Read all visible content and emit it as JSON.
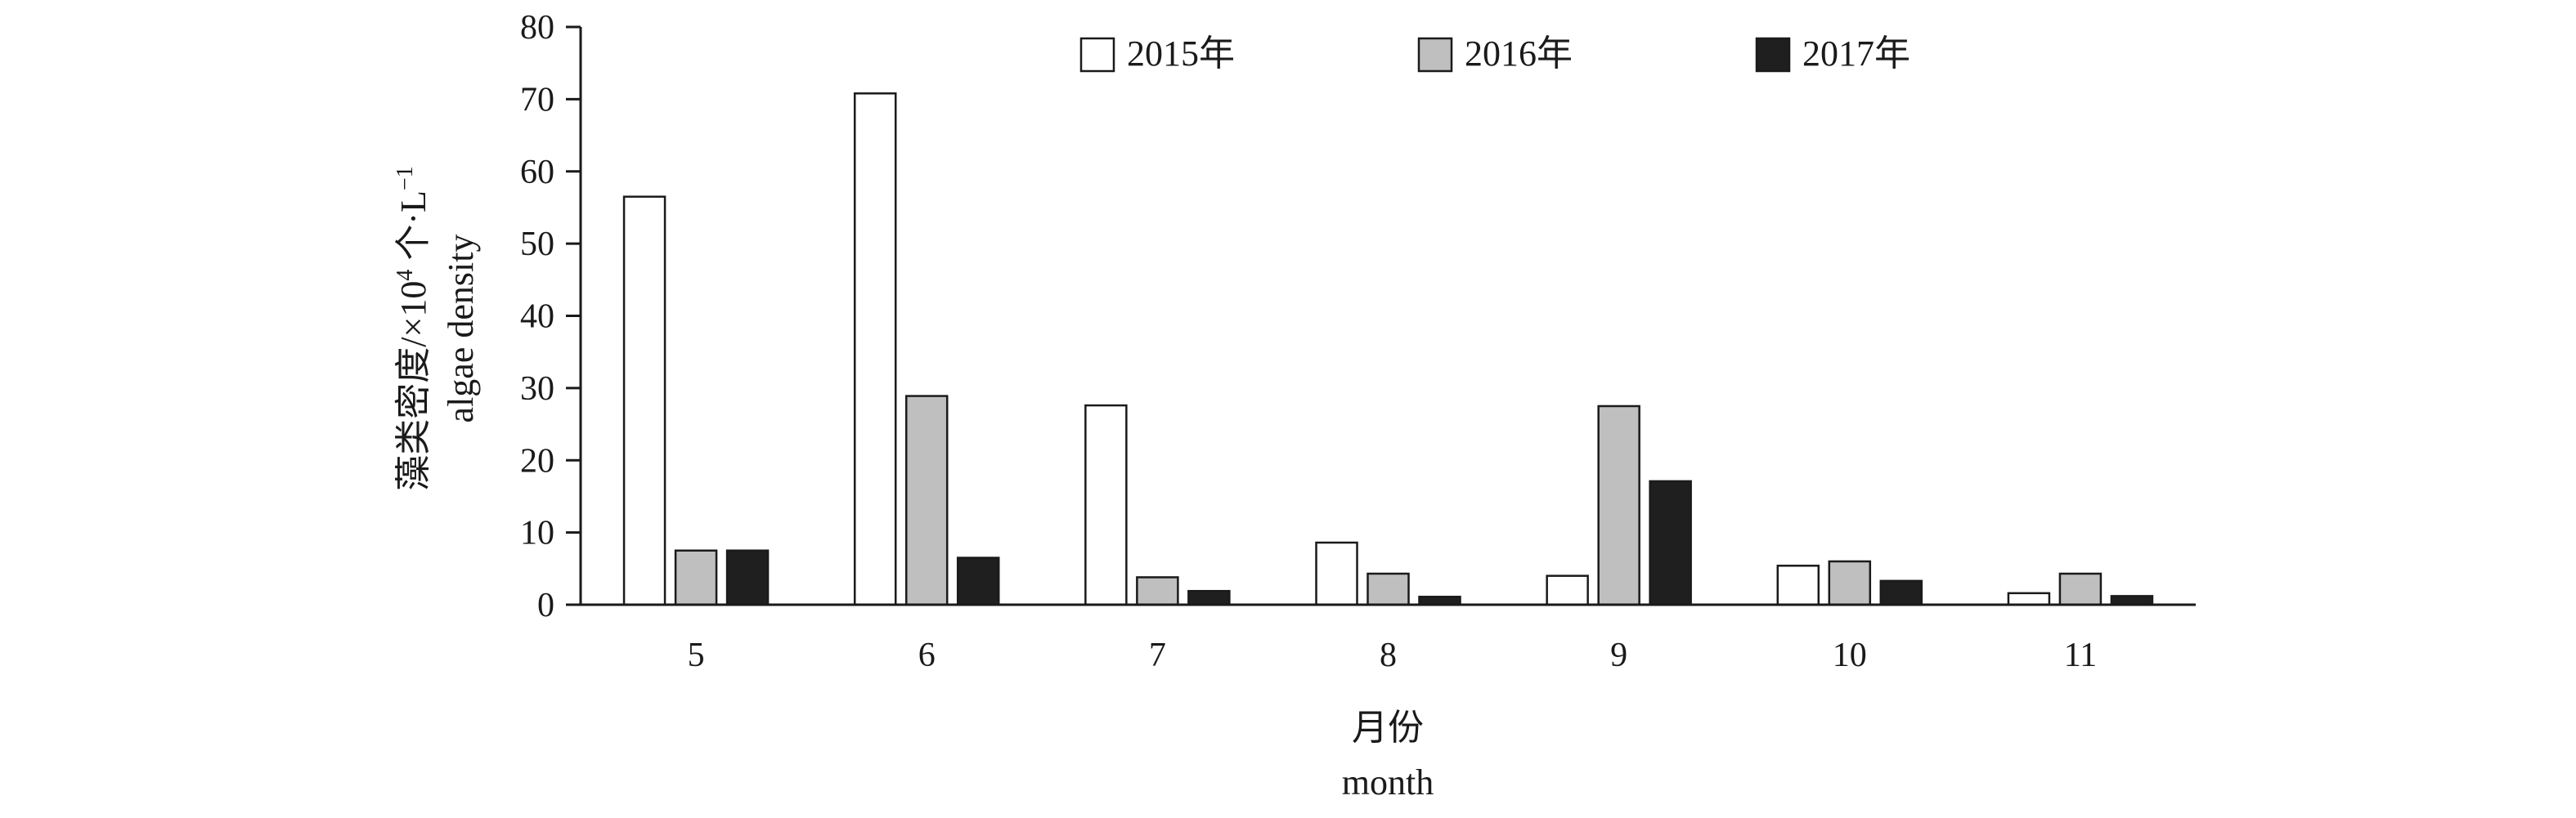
{
  "chart_data": {
    "type": "bar",
    "title": "",
    "xlabel": "月份",
    "xlabel_en": "month",
    "ylabel": "藻类密度/×10",
    "ylabel_sup": "4",
    "ylabel_unit": " 个·L",
    "ylabel_unit_sup": "−1",
    "ylabel_en": "algae density",
    "ylim": [
      0,
      80
    ],
    "yticks": [
      "0",
      "10",
      "20",
      "30",
      "40",
      "50",
      "60",
      "70",
      "80"
    ],
    "categories": [
      "5",
      "6",
      "7",
      "8",
      "9",
      "10",
      "11"
    ],
    "series": [
      {
        "name": "2015年",
        "color": "#ffffff",
        "values": [
          56.5,
          70.8,
          27.6,
          8.6,
          4.0,
          5.4,
          1.6
        ]
      },
      {
        "name": "2016年",
        "color": "#bfbfbf",
        "values": [
          7.5,
          28.9,
          3.8,
          4.3,
          27.5,
          6.0,
          4.3
        ]
      },
      {
        "name": "2017年",
        "color": "#1f1f1f",
        "values": [
          7.5,
          6.5,
          1.9,
          1.1,
          17.1,
          3.3,
          1.2
        ]
      }
    ],
    "grid": false,
    "legend_position": "top"
  }
}
